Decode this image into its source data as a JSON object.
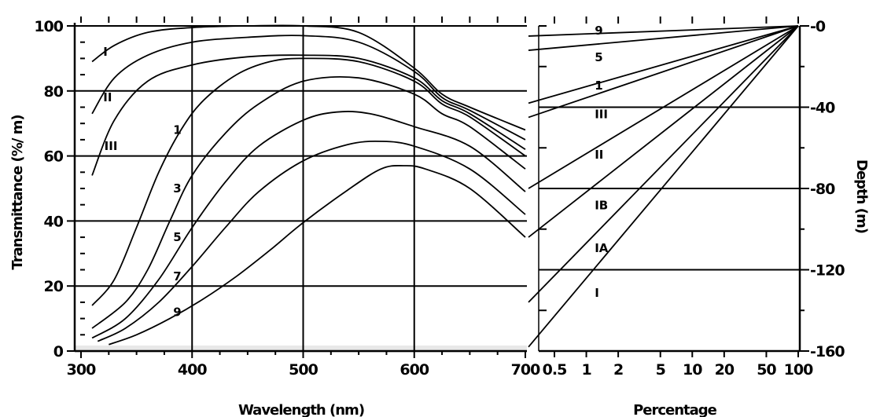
{
  "chart_data": [
    {
      "type": "line",
      "title": "",
      "xlabel": "Wavelength (nm)",
      "ylabel": "Transmittance (%/ m)",
      "xlim": [
        300,
        700
      ],
      "ylim": [
        0,
        100
      ],
      "x_ticks": [
        "300",
        "400",
        "500",
        "600",
        "700"
      ],
      "y_ticks": [
        "0",
        "20",
        "40",
        "60",
        "80",
        "100"
      ],
      "grid": "horizontal lines at 20, 40, 60, 80, 100; vertical lines at 400, 500, 600",
      "series": [
        {
          "name": "I",
          "x": [
            310,
            330,
            360,
            400,
            450,
            500,
            550,
            600,
            625,
            650,
            700
          ],
          "y": [
            89,
            94,
            98,
            99.5,
            100,
            100,
            98,
            87,
            79,
            75,
            68
          ]
        },
        {
          "name": "II",
          "x": [
            310,
            330,
            360,
            400,
            450,
            500,
            550,
            600,
            625,
            650,
            700
          ],
          "y": [
            73,
            84,
            91,
            95,
            96.5,
            97,
            95,
            86,
            78,
            74,
            65
          ]
        },
        {
          "name": "III",
          "x": [
            310,
            330,
            360,
            400,
            450,
            500,
            550,
            600,
            625,
            650,
            700
          ],
          "y": [
            54,
            71,
            83,
            88,
            90.5,
            91,
            90,
            84,
            77,
            73,
            62
          ]
        },
        {
          "name": "1",
          "x": [
            310,
            330,
            350,
            370,
            390,
            410,
            440,
            470,
            500,
            550,
            600,
            625,
            650,
            700
          ],
          "y": [
            14,
            22,
            38,
            55,
            68,
            77,
            85,
            89,
            90,
            89,
            83,
            76,
            72,
            60
          ]
        },
        {
          "name": "3",
          "x": [
            310,
            340,
            360,
            380,
            400,
            430,
            460,
            500,
            550,
            600,
            625,
            650,
            700
          ],
          "y": [
            7,
            15,
            25,
            40,
            54,
            67,
            76,
            83,
            84,
            79,
            73,
            69,
            56
          ]
        },
        {
          "name": "5",
          "x": [
            310,
            340,
            370,
            400,
            430,
            460,
            500,
            530,
            560,
            600,
            650,
            700
          ],
          "y": [
            4,
            10,
            22,
            38,
            52,
            63,
            71,
            73.5,
            73,
            69,
            63,
            49
          ]
        },
        {
          "name": "7",
          "x": [
            315,
            340,
            370,
            400,
            430,
            460,
            500,
            540,
            570,
            600,
            650,
            700
          ],
          "y": [
            3,
            7,
            15,
            26,
            38,
            49,
            58.5,
            63.5,
            64.5,
            63,
            56,
            42
          ]
        },
        {
          "name": "9",
          "x": [
            325,
            350,
            380,
            410,
            440,
            470,
            500,
            540,
            570,
            590,
            610,
            650,
            700
          ],
          "y": [
            2,
            5,
            10,
            16,
            23,
            31,
            39.5,
            49.5,
            56,
            57,
            56,
            50,
            35
          ]
        }
      ],
      "curve_labels": [
        {
          "text": "I",
          "x": 320,
          "y": 92
        },
        {
          "text": "II",
          "x": 320,
          "y": 78
        },
        {
          "text": "III",
          "x": 321,
          "y": 63
        },
        {
          "text": "1",
          "x": 383,
          "y": 68
        },
        {
          "text": "3",
          "x": 383,
          "y": 50
        },
        {
          "text": "5",
          "x": 383,
          "y": 35
        },
        {
          "text": "7",
          "x": 383,
          "y": 23
        },
        {
          "text": "9",
          "x": 383,
          "y": 12
        }
      ]
    },
    {
      "type": "line",
      "title": "",
      "xlabel": "Percentage",
      "ylabel": "Depth (m)",
      "xscale": "log",
      "xlim": [
        0.4,
        100
      ],
      "ylim": [
        -160,
        0
      ],
      "x_ticks": [
        "0.5",
        "1",
        "2",
        "5",
        "10",
        "20",
        "50",
        "100"
      ],
      "y_ticks": [
        "-0",
        "-40",
        "-80",
        "-120",
        "-160"
      ],
      "y_axis_position": "right",
      "grid": "horizontal lines at -40, -80, -120",
      "series": [
        {
          "name": "9",
          "x": [
            0.4,
            100
          ],
          "y": [
            -5,
            0
          ]
        },
        {
          "name": "5",
          "x": [
            0.4,
            100
          ],
          "y": [
            -12,
            0
          ]
        },
        {
          "name": "1",
          "x": [
            0.4,
            100
          ],
          "y": [
            -38,
            0
          ]
        },
        {
          "name": "III",
          "x": [
            0.4,
            100
          ],
          "y": [
            -45,
            0
          ]
        },
        {
          "name": "II",
          "x": [
            0.4,
            100
          ],
          "y": [
            -80,
            0
          ]
        },
        {
          "name": "IB",
          "x": [
            0.4,
            100
          ],
          "y": [
            -104,
            0
          ]
        },
        {
          "name": "IA",
          "x": [
            0.4,
            100
          ],
          "y": [
            -136,
            0
          ]
        },
        {
          "name": "I",
          "x": [
            0.4,
            100
          ],
          "y": [
            -158,
            0
          ]
        }
      ],
      "curve_labels": [
        {
          "text": "9",
          "x": 1.2,
          "y": -2
        },
        {
          "text": "5",
          "x": 1.2,
          "y": -15
        },
        {
          "text": "1",
          "x": 1.2,
          "y": -29
        },
        {
          "text": "III",
          "x": 1.2,
          "y": -43
        },
        {
          "text": "II",
          "x": 1.2,
          "y": -63
        },
        {
          "text": "IB",
          "x": 1.2,
          "y": -88
        },
        {
          "text": "IA",
          "x": 1.2,
          "y": -109
        },
        {
          "text": "I",
          "x": 1.2,
          "y": -131
        }
      ]
    }
  ]
}
